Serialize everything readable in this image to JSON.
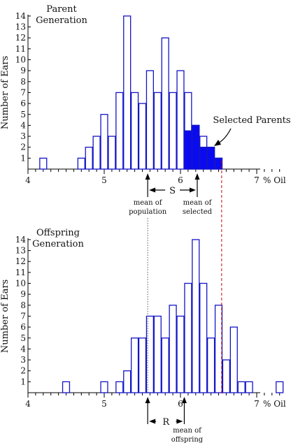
{
  "colors": {
    "outline": "#1414c8",
    "fill_selected": "#0a0af0",
    "axis": "#000000",
    "dashed_line": "#cc0000",
    "dotted_line": "#555555"
  },
  "chart_data": [
    {
      "type": "bar",
      "title": "Parent\nGeneration",
      "xlabel": "% Oil",
      "ylabel": "Number of Ears",
      "xlim": [
        4,
        7.4
      ],
      "ylim": [
        0,
        14
      ],
      "x_ticks": [
        "4",
        "5",
        "6",
        "7"
      ],
      "y_ticks": [
        "1",
        "2",
        "3",
        "4",
        "5",
        "6",
        "7",
        "8",
        "9",
        "10",
        "11",
        "12",
        "13",
        "14"
      ],
      "bin_width": 0.1,
      "series": [
        {
          "x": [
            4.2,
            4.7,
            4.8,
            4.9,
            5.0,
            5.1,
            5.2,
            5.3,
            5.4,
            5.5,
            5.6,
            5.7,
            5.8,
            5.9,
            6.0,
            6.1,
            6.2,
            6.3,
            6.4,
            6.5
          ],
          "values": [
            1,
            1,
            2,
            3,
            5,
            3,
            7,
            14,
            7,
            6,
            9,
            7,
            12,
            7,
            9,
            7,
            4,
            3,
            2,
            1
          ]
        },
        {
          "name": "Selected Parents",
          "x": [
            6.1,
            6.2,
            6.3,
            6.4,
            6.5
          ],
          "values": [
            3.5,
            4,
            2,
            2,
            1
          ]
        }
      ],
      "annotations": {
        "selected_label": "Selected Parents",
        "mean_population_label": "mean of\npopulation",
        "mean_population_x": 5.57,
        "mean_selected_label": "mean of\nselected",
        "mean_selected_x": 6.22,
        "dashed_line_x": 6.54,
        "differential_label": "S"
      }
    },
    {
      "type": "bar",
      "title": "Offspring\nGeneration",
      "xlabel": "% Oil",
      "ylabel": "Number of Ears",
      "xlim": [
        4,
        7.4
      ],
      "ylim": [
        0,
        14
      ],
      "x_ticks": [
        "4",
        "5",
        "6",
        "7"
      ],
      "y_ticks": [
        "1",
        "2",
        "3",
        "4",
        "5",
        "6",
        "7",
        "8",
        "9",
        "10",
        "11",
        "12",
        "13",
        "14"
      ],
      "bin_width": 0.1,
      "series": [
        {
          "x": [
            4.5,
            5.0,
            5.2,
            5.3,
            5.4,
            5.5,
            5.6,
            5.7,
            5.8,
            5.9,
            6.0,
            6.1,
            6.2,
            6.3,
            6.4,
            6.5,
            6.6,
            6.7,
            6.8,
            6.9,
            7.3
          ],
          "values": [
            1,
            1,
            1,
            2,
            5,
            5,
            7,
            7,
            5,
            8,
            7,
            10,
            14,
            10,
            5,
            8,
            3,
            6,
            1,
            1,
            1
          ]
        }
      ],
      "annotations": {
        "mean_offspring_label": "mean of\noffspring",
        "mean_offspring_x": 6.05,
        "dotted_line_x": 5.57,
        "dashed_line_x": 6.54,
        "response_label": "R"
      }
    }
  ]
}
